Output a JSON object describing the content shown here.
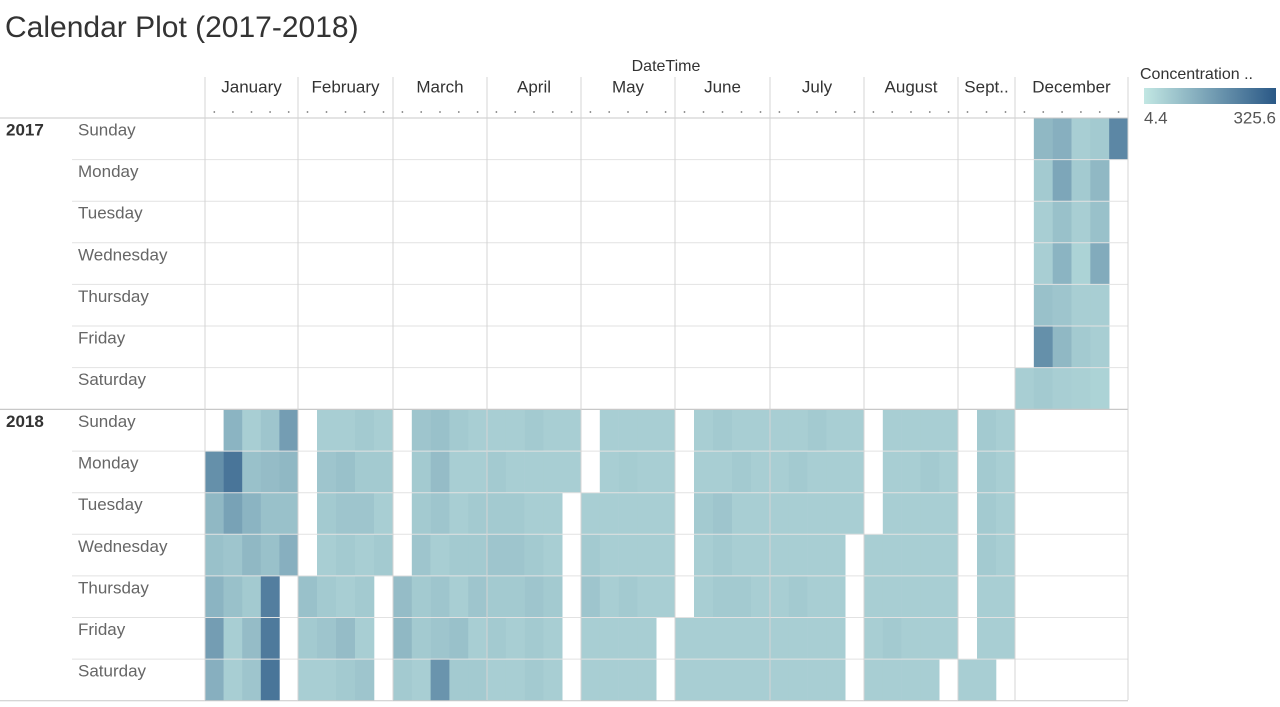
{
  "chart_data": {
    "type": "calendar-heatmap",
    "title": "Calendar Plot (2017-2018)",
    "axis_label": "DateTime",
    "months": [
      "January",
      "February",
      "March",
      "April",
      "May",
      "June",
      "July",
      "August",
      "Sept..",
      "December"
    ],
    "days": [
      "Sunday",
      "Monday",
      "Tuesday",
      "Wednesday",
      "Thursday",
      "Friday",
      "Saturday"
    ],
    "color_range": [
      "#c2e7e3",
      "#2a5886"
    ],
    "legend": {
      "title": "Concentration ..",
      "min": 4.4,
      "max": 325.6
    },
    "years": [
      {
        "label": "2017",
        "months": [
          null,
          null,
          null,
          null,
          null,
          null,
          null,
          null,
          null,
          [
            [
              null,
              null,
              null,
              null,
              null,
              null,
              60
            ],
            [
              110,
              70,
              60,
              60,
              90,
              200,
              70
            ],
            [
              130,
              150,
              90,
              120,
              80,
              110,
              60
            ],
            [
              60,
              70,
              60,
              50,
              60,
              70,
              55
            ],
            [
              70,
              110,
              90,
              140,
              60,
              60,
              50
            ],
            [
              220,
              null,
              null,
              null,
              null,
              null,
              null
            ]
          ]
        ]
      },
      {
        "label": "2018",
        "months": [
          [
            [
              null,
              200,
              110,
              90,
              120,
              170,
              130
            ],
            [
              120,
              260,
              160,
              80,
              90,
              60,
              60
            ],
            [
              60,
              90,
              120,
              110,
              70,
              100,
              80
            ],
            [
              80,
              100,
              90,
              90,
              240,
              250,
              260
            ],
            [
              170,
              110,
              90,
              130,
              null,
              null,
              null
            ]
          ],
          [
            [
              null,
              null,
              null,
              null,
              90,
              70,
              60
            ],
            [
              60,
              80,
              70,
              60,
              70,
              80,
              60
            ],
            [
              60,
              90,
              80,
              70,
              60,
              100,
              70
            ],
            [
              70,
              70,
              80,
              60,
              70,
              60,
              80
            ],
            [
              60,
              70,
              60,
              70,
              null,
              null,
              null
            ]
          ],
          [
            [
              null,
              null,
              null,
              null,
              100,
              110,
              70
            ],
            [
              80,
              70,
              70,
              80,
              70,
              70,
              60
            ],
            [
              90,
              100,
              80,
              60,
              80,
              80,
              190
            ],
            [
              70,
              60,
              60,
              70,
              60,
              90,
              70
            ],
            [
              60,
              60,
              70,
              70,
              80,
              60,
              70
            ]
          ],
          [
            [
              60,
              70,
              70,
              80,
              70,
              70,
              60
            ],
            [
              60,
              60,
              70,
              80,
              70,
              60,
              60
            ],
            [
              70,
              60,
              60,
              70,
              80,
              70,
              70
            ],
            [
              60,
              60,
              60,
              60,
              70,
              60,
              60
            ],
            [
              60,
              60,
              null,
              null,
              null,
              null,
              null
            ]
          ],
          [
            [
              null,
              null,
              60,
              70,
              80,
              60,
              60
            ],
            [
              60,
              60,
              60,
              60,
              60,
              60,
              60
            ],
            [
              60,
              65,
              60,
              60,
              70,
              60,
              60
            ],
            [
              60,
              60,
              60,
              60,
              60,
              60,
              60
            ],
            [
              60,
              60,
              60,
              60,
              60,
              null,
              null
            ]
          ],
          [
            [
              null,
              null,
              null,
              null,
              null,
              60,
              60
            ],
            [
              60,
              60,
              70,
              60,
              60,
              60,
              60
            ],
            [
              70,
              60,
              80,
              70,
              70,
              60,
              60
            ],
            [
              60,
              70,
              60,
              60,
              70,
              60,
              60
            ],
            [
              60,
              60,
              60,
              60,
              60,
              60,
              60
            ]
          ],
          [
            [
              60,
              60,
              60,
              60,
              60,
              60,
              60
            ],
            [
              60,
              70,
              60,
              60,
              70,
              60,
              60
            ],
            [
              70,
              60,
              60,
              60,
              60,
              60,
              60
            ],
            [
              60,
              60,
              60,
              60,
              60,
              60,
              60
            ],
            [
              60,
              60,
              60,
              null,
              null,
              null,
              null
            ]
          ],
          [
            [
              null,
              null,
              null,
              60,
              60,
              60,
              60
            ],
            [
              60,
              60,
              60,
              60,
              60,
              70,
              60
            ],
            [
              60,
              60,
              60,
              60,
              60,
              60,
              60
            ],
            [
              60,
              70,
              60,
              60,
              60,
              60,
              60
            ],
            [
              60,
              60,
              60,
              60,
              60,
              60,
              null
            ]
          ],
          [
            [
              null,
              null,
              null,
              null,
              null,
              null,
              60
            ],
            [
              70,
              70,
              70,
              70,
              60,
              60,
              60
            ],
            [
              60,
              60,
              60,
              60,
              60,
              60,
              null
            ]
          ],
          null
        ]
      }
    ]
  }
}
